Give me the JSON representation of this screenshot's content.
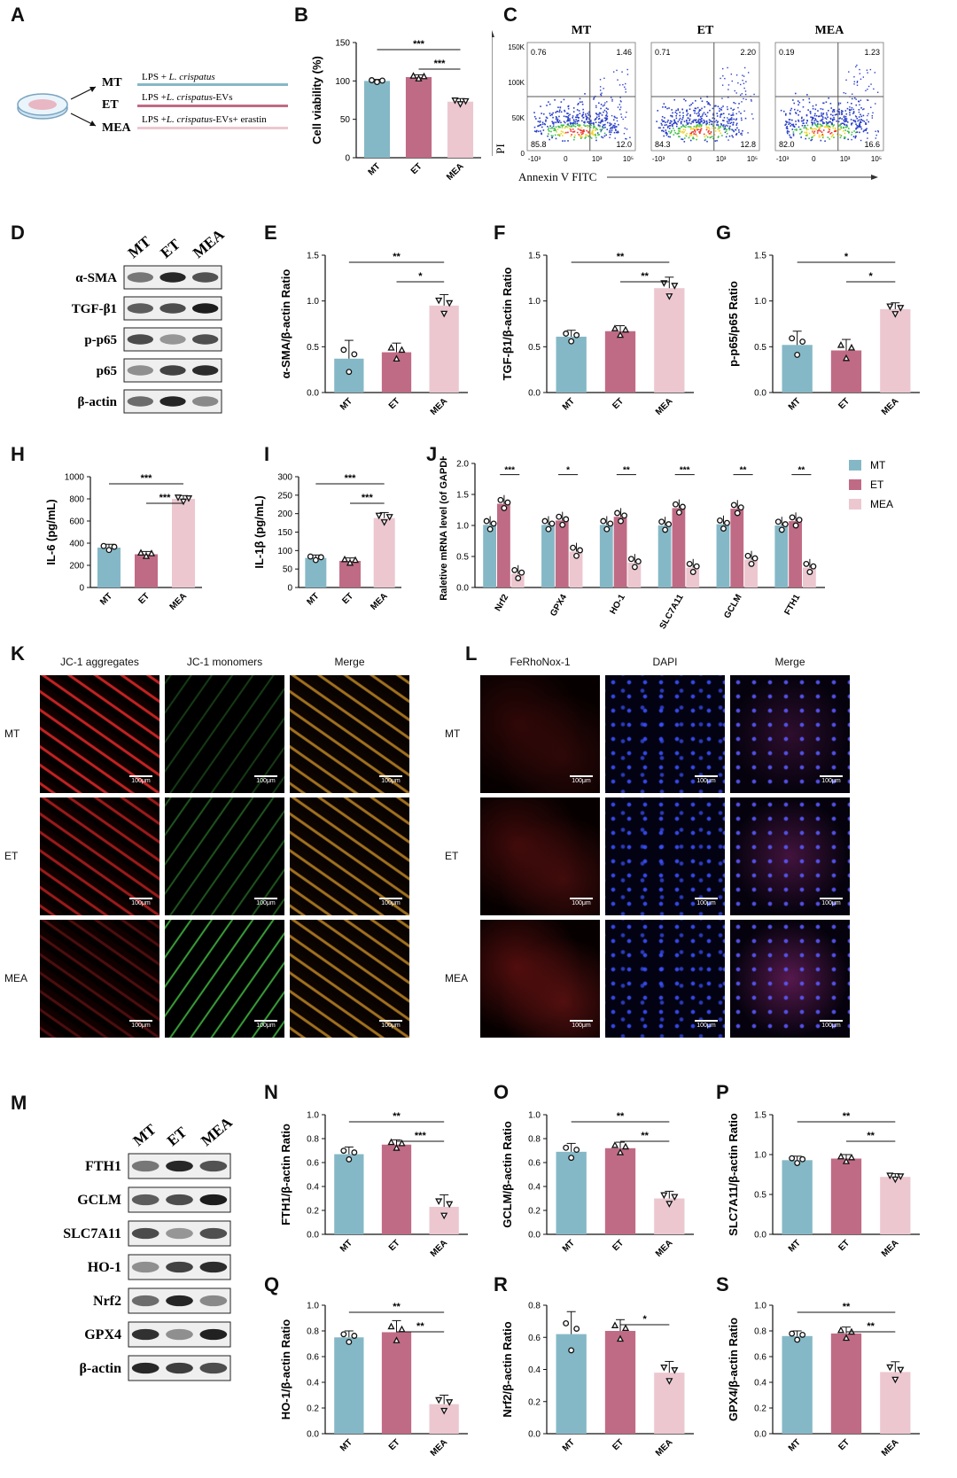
{
  "labels": {
    "A": "A",
    "B": "B",
    "C": "C",
    "D": "D",
    "E": "E",
    "F": "F",
    "G": "G",
    "H": "H",
    "I": "I",
    "J": "J",
    "K": "K",
    "L": "L",
    "M": "M",
    "N": "N",
    "O": "O",
    "P": "P",
    "Q": "Q",
    "R": "R",
    "S": "S"
  },
  "colors": {
    "MT": "#85b8c6",
    "ET": "#c06b85",
    "MEA": "#ecc7d0"
  },
  "groups": [
    "MT",
    "ET",
    "MEA"
  ],
  "panelA": {
    "rows": [
      {
        "group": "MT",
        "label": "LPS + ",
        "species": "L. crispatus",
        "suffix": ""
      },
      {
        "group": "ET",
        "label": "LPS +",
        "species": "L. crispatus",
        "suffix": "-EVs"
      },
      {
        "group": "MEA",
        "label": "LPS +",
        "species": "L. crispatus",
        "suffix": "-EVs+ erastin"
      }
    ]
  },
  "flow": {
    "titles": [
      "MT",
      "ET",
      "MEA"
    ],
    "quadrants": [
      [
        "0.76",
        "1.46",
        "85.8",
        "12.0"
      ],
      [
        "0.71",
        "2.20",
        "84.3",
        "12.8"
      ],
      [
        "0.19",
        "1.23",
        "82.0",
        "16.6"
      ]
    ],
    "ylabel": "PI",
    "xlabel": "Annexin V FITC",
    "yticks": [
      "150K",
      "100K",
      "50K",
      "0"
    ],
    "xticks": [
      "-10³",
      "0",
      "10³",
      "10⁵"
    ]
  },
  "blotD": {
    "lanes": [
      "MT",
      "ET",
      "MEA"
    ],
    "proteins": [
      "α-SMA",
      "TGF-β1",
      "p-p65",
      "p65",
      "β-actin"
    ]
  },
  "blotM": {
    "lanes": [
      "MT",
      "ET",
      "MEA"
    ],
    "proteins": [
      "FTH1",
      "GCLM",
      "SLC7A11",
      "HO-1",
      "Nrf2",
      "GPX4",
      "β-actin"
    ]
  },
  "micrographs": {
    "K": {
      "columns": [
        "JC-1 aggregates",
        "JC-1 monomers",
        "Merge"
      ],
      "rows": [
        "MT",
        "ET",
        "MEA"
      ],
      "scale": "100μm"
    },
    "L": {
      "columns": [
        "FeRhoNox-1",
        "DAPI",
        "Merge"
      ],
      "rows": [
        "MT",
        "ET",
        "MEA"
      ],
      "scale": "100μm"
    }
  },
  "chart_data": [
    {
      "id": "B",
      "type": "bar",
      "categories": [
        "MT",
        "ET",
        "MEA"
      ],
      "values": [
        100,
        105,
        73
      ],
      "errors": [
        2,
        3,
        4
      ],
      "ylabel": "Cell viability (%)",
      "ylim": [
        0,
        150
      ],
      "yticks": [
        0,
        50,
        100,
        150
      ],
      "sig": [
        {
          "from": 0,
          "to": 2,
          "text": "***"
        },
        {
          "from": 1,
          "to": 2,
          "text": "***"
        }
      ]
    },
    {
      "id": "E",
      "type": "bar",
      "categories": [
        "MT",
        "ET",
        "MEA"
      ],
      "values": [
        0.37,
        0.44,
        0.95
      ],
      "errors": [
        0.2,
        0.1,
        0.12
      ],
      "ylabel": "α-SMA/β-actin Ratio",
      "ylim": [
        0,
        1.5
      ],
      "yticks": [
        "0.0",
        "0.5",
        "1.0",
        "1.5"
      ],
      "sig": [
        {
          "from": 0,
          "to": 2,
          "text": "**"
        },
        {
          "from": 1,
          "to": 2,
          "text": "*"
        }
      ]
    },
    {
      "id": "F",
      "type": "bar",
      "categories": [
        "MT",
        "ET",
        "MEA"
      ],
      "values": [
        0.61,
        0.67,
        1.14
      ],
      "errors": [
        0.07,
        0.06,
        0.12
      ],
      "ylabel": "TGF-β1/β-actin Ratio",
      "ylim": [
        0,
        1.5
      ],
      "yticks": [
        "0.0",
        "0.5",
        "1.0",
        "1.5"
      ],
      "sig": [
        {
          "from": 0,
          "to": 2,
          "text": "**"
        },
        {
          "from": 1,
          "to": 2,
          "text": "**"
        }
      ]
    },
    {
      "id": "G",
      "type": "bar",
      "categories": [
        "MT",
        "ET",
        "MEA"
      ],
      "values": [
        0.52,
        0.46,
        0.91
      ],
      "errors": [
        0.15,
        0.12,
        0.07
      ],
      "ylabel": "p-p65/p65 Ratio",
      "ylim": [
        0,
        1.5
      ],
      "yticks": [
        "0.0",
        "0.5",
        "1.0",
        "1.5"
      ],
      "sig": [
        {
          "from": 0,
          "to": 2,
          "text": "*"
        },
        {
          "from": 1,
          "to": 2,
          "text": "*"
        }
      ]
    },
    {
      "id": "H",
      "type": "bar",
      "categories": [
        "MT",
        "ET",
        "MEA"
      ],
      "values": [
        360,
        300,
        800
      ],
      "errors": [
        30,
        25,
        30
      ],
      "ylabel": "IL-6 (pg/mL)",
      "ylim": [
        0,
        1000
      ],
      "yticks": [
        0,
        200,
        400,
        600,
        800,
        1000
      ],
      "sig": [
        {
          "from": 0,
          "to": 2,
          "text": "***"
        },
        {
          "from": 1,
          "to": 2,
          "text": "***"
        }
      ]
    },
    {
      "id": "I",
      "type": "bar",
      "categories": [
        "MT",
        "ET",
        "MEA"
      ],
      "values": [
        80,
        72,
        188
      ],
      "errors": [
        8,
        8,
        15
      ],
      "ylabel": "IL-1β (pg/mL)",
      "ylim": [
        0,
        300
      ],
      "yticks": [
        0,
        50,
        100,
        150,
        200,
        250,
        300
      ],
      "sig": [
        {
          "from": 0,
          "to": 2,
          "text": "***"
        },
        {
          "from": 1,
          "to": 2,
          "text": "***"
        }
      ]
    },
    {
      "id": "J",
      "type": "bar",
      "categories": [
        "Nrf2",
        "GPX4",
        "HO-1",
        "SLC7A11",
        "GCLM",
        "FTH1"
      ],
      "series": [
        {
          "name": "MT",
          "values": [
            1.01,
            1.01,
            1.01,
            1.0,
            1.02,
            1.0
          ],
          "errors": [
            0.1,
            0.06,
            0.06,
            0.05,
            0.2,
            0.03
          ]
        },
        {
          "name": "ET",
          "values": [
            1.35,
            1.08,
            1.14,
            1.28,
            1.27,
            1.07
          ]
        },
        {
          "name": "MEA",
          "values": [
            0.22,
            0.58,
            0.4,
            0.32,
            0.45,
            0.32
          ]
        }
      ],
      "ylabel": "Raletive mRNA level (of GAPDH)",
      "ylim": [
        0,
        2.0
      ],
      "yticks": [
        "0.0",
        "0.5",
        "1.0",
        "1.5",
        "2.0"
      ],
      "sig": [
        "***",
        "*",
        "**",
        "***",
        "**",
        "**"
      ],
      "legend": "top-right"
    },
    {
      "id": "N",
      "type": "bar",
      "categories": [
        "MT",
        "ET",
        "MEA"
      ],
      "values": [
        0.67,
        0.75,
        0.23
      ],
      "errors": [
        0.06,
        0.04,
        0.1
      ],
      "ylabel": "FTH1/β-actin Ratio",
      "ylim": [
        0,
        1.0
      ],
      "yticks": [
        "0.0",
        "0.2",
        "0.4",
        "0.6",
        "0.8",
        "1.0"
      ],
      "sig": [
        {
          "from": 0,
          "to": 2,
          "text": "**"
        },
        {
          "from": 1,
          "to": 2,
          "text": "***"
        }
      ]
    },
    {
      "id": "O",
      "type": "bar",
      "categories": [
        "MT",
        "ET",
        "MEA"
      ],
      "values": [
        0.69,
        0.72,
        0.3
      ],
      "errors": [
        0.07,
        0.05,
        0.06
      ],
      "ylabel": "GCLM/β-actin Ratio",
      "ylim": [
        0,
        1.0
      ],
      "yticks": [
        "0.0",
        "0.2",
        "0.4",
        "0.6",
        "0.8",
        "1.0"
      ],
      "sig": [
        {
          "from": 0,
          "to": 2,
          "text": "**"
        },
        {
          "from": 1,
          "to": 2,
          "text": "**"
        }
      ]
    },
    {
      "id": "P",
      "type": "bar",
      "categories": [
        "MT",
        "ET",
        "MEA"
      ],
      "values": [
        0.93,
        0.95,
        0.72
      ],
      "errors": [
        0.05,
        0.05,
        0.04
      ],
      "ylabel": "SLC7A11/β-actin Ratio",
      "ylim": [
        0,
        1.5
      ],
      "yticks": [
        "0.0",
        "0.5",
        "1.0",
        "1.5"
      ],
      "sig": [
        {
          "from": 0,
          "to": 2,
          "text": "**"
        },
        {
          "from": 1,
          "to": 2,
          "text": "**"
        }
      ]
    },
    {
      "id": "Q",
      "type": "bar",
      "categories": [
        "MT",
        "ET",
        "MEA"
      ],
      "values": [
        0.75,
        0.79,
        0.23
      ],
      "errors": [
        0.05,
        0.09,
        0.07
      ],
      "ylabel": "HO-1/β-actin Ratio",
      "ylim": [
        0,
        1.0
      ],
      "yticks": [
        "0.0",
        "0.2",
        "0.4",
        "0.6",
        "0.8",
        "1.0"
      ],
      "sig": [
        {
          "from": 0,
          "to": 2,
          "text": "**"
        },
        {
          "from": 1,
          "to": 2,
          "text": "**"
        }
      ]
    },
    {
      "id": "R",
      "type": "bar",
      "categories": [
        "MT",
        "ET",
        "MEA"
      ],
      "values": [
        0.62,
        0.64,
        0.38
      ],
      "errors": [
        0.14,
        0.07,
        0.07
      ],
      "ylabel": "Nrf2/β-actin Ratio",
      "ylim": [
        0,
        0.8
      ],
      "yticks": [
        "0.0",
        "0.2",
        "0.4",
        "0.6",
        "0.8"
      ],
      "sig": [
        {
          "from": 1,
          "to": 2,
          "text": "*"
        }
      ]
    },
    {
      "id": "S",
      "type": "bar",
      "categories": [
        "MT",
        "ET",
        "MEA"
      ],
      "values": [
        0.76,
        0.78,
        0.48
      ],
      "errors": [
        0.04,
        0.05,
        0.08
      ],
      "ylabel": "GPX4/β-actin Ratio",
      "ylim": [
        0,
        1.0
      ],
      "yticks": [
        "0.0",
        "0.2",
        "0.4",
        "0.6",
        "0.8",
        "1.0"
      ],
      "sig": [
        {
          "from": 0,
          "to": 2,
          "text": "**"
        },
        {
          "from": 1,
          "to": 2,
          "text": "**"
        }
      ]
    }
  ]
}
